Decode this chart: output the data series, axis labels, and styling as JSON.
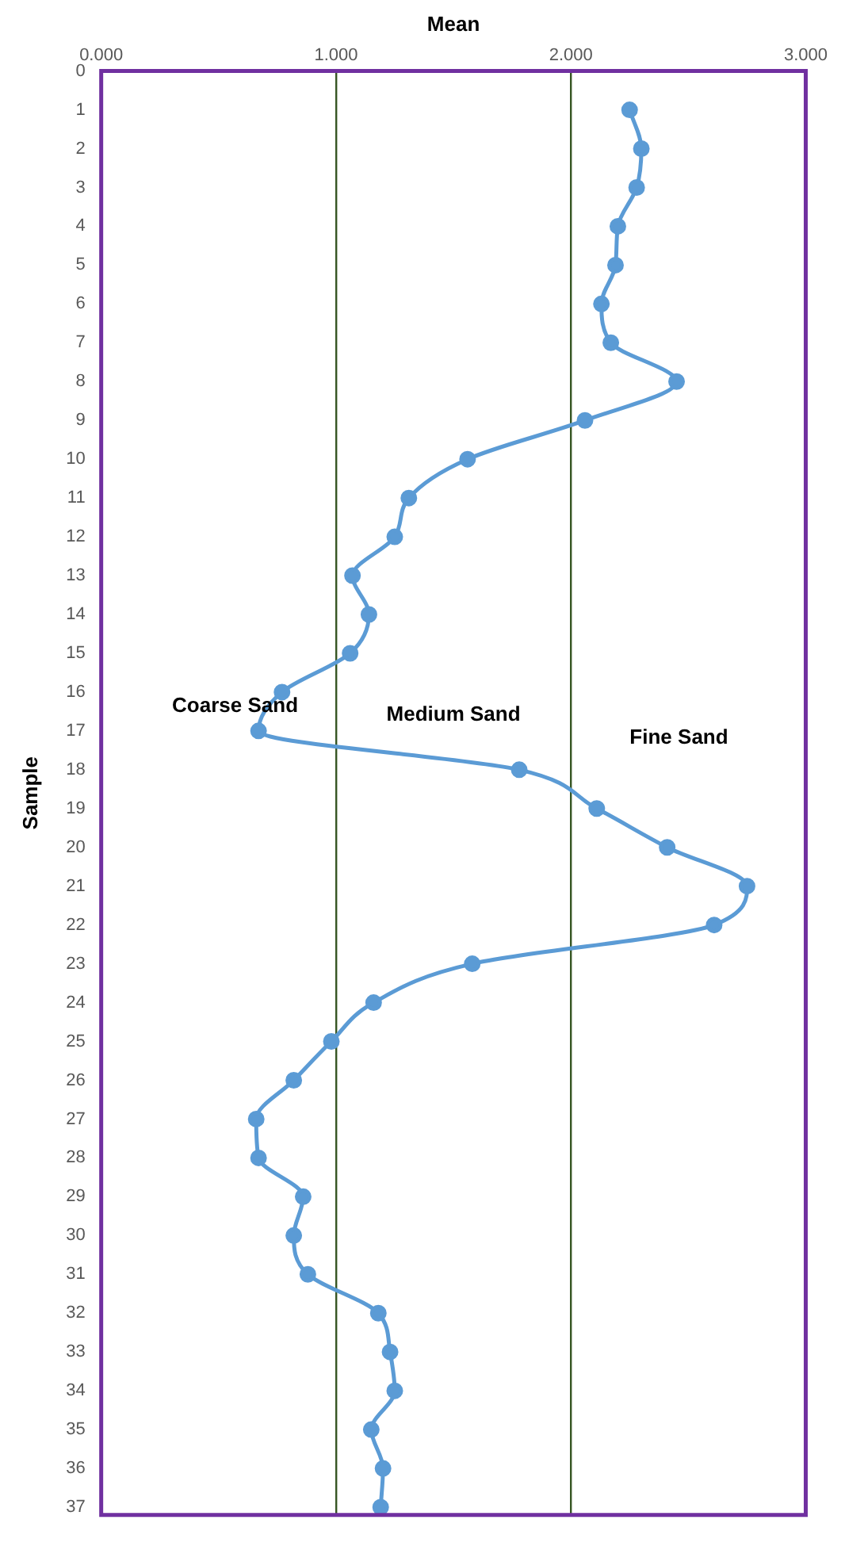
{
  "chart_data": {
    "type": "line",
    "orientation": "horizontal",
    "xlabel": "Mean",
    "ylabel": "Sample",
    "x": [
      1,
      2,
      3,
      4,
      5,
      6,
      7,
      8,
      9,
      10,
      11,
      12,
      13,
      14,
      15,
      16,
      17,
      18,
      19,
      20,
      21,
      22,
      23,
      24,
      25,
      26,
      27,
      28,
      29,
      30,
      31,
      32,
      33,
      34,
      35,
      36,
      37
    ],
    "series": [
      {
        "color": "#5b9bd5",
        "values": [
          2.25,
          2.3,
          2.28,
          2.2,
          2.19,
          2.13,
          2.17,
          2.45,
          2.06,
          1.56,
          1.31,
          1.25,
          1.07,
          1.14,
          1.06,
          0.77,
          0.67,
          1.78,
          2.11,
          2.41,
          2.75,
          2.61,
          1.58,
          1.16,
          0.98,
          0.82,
          0.66,
          0.67,
          0.86,
          0.82,
          0.88,
          1.18,
          1.23,
          1.25,
          1.15,
          1.2,
          1.19
        ]
      }
    ],
    "xlim": [
      0,
      3
    ],
    "xticks": [
      {
        "value": 0,
        "label": "0.000"
      },
      {
        "value": 1,
        "label": "1.000"
      },
      {
        "value": 2,
        "label": "2.000"
      },
      {
        "value": 3,
        "label": "3.000"
      }
    ],
    "ylim": [
      37.2,
      0
    ],
    "yticks": [
      0,
      1,
      2,
      3,
      4,
      5,
      6,
      7,
      8,
      9,
      10,
      11,
      12,
      13,
      14,
      15,
      16,
      17,
      18,
      19,
      20,
      21,
      22,
      23,
      24,
      25,
      26,
      27,
      28,
      29,
      30,
      31,
      32,
      33,
      34,
      35,
      36,
      37
    ],
    "grid": "x",
    "marker": "circle",
    "line_style": "solid",
    "legend": false,
    "annotations": [
      "Coarse Sand",
      "Medium Sand",
      "Fine Sand"
    ]
  }
}
